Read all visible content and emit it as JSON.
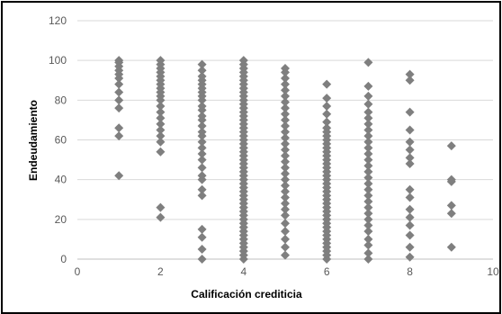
{
  "chart_data": {
    "type": "scatter",
    "title": "",
    "xlabel": "Calificación crediticia",
    "ylabel": "Endeudamiento",
    "xlim": [
      0,
      10
    ],
    "ylim": [
      0,
      120
    ],
    "x_ticks": [
      "0",
      "2",
      "4",
      "6",
      "8",
      "10"
    ],
    "y_ticks": [
      "0",
      "20",
      "40",
      "60",
      "80",
      "100",
      "120"
    ],
    "grid": "horizontal",
    "legend": "none",
    "marker": "diamond",
    "marker_color": "#7f7f7f",
    "series": [
      {
        "points": [
          [
            1,
            42
          ],
          [
            1,
            62
          ],
          [
            1,
            66
          ],
          [
            1,
            76
          ],
          [
            1,
            80
          ],
          [
            1,
            84
          ],
          [
            1,
            88
          ],
          [
            1,
            91
          ],
          [
            1,
            93
          ],
          [
            1,
            95
          ],
          [
            1,
            97
          ],
          [
            1,
            99
          ],
          [
            1,
            100
          ],
          [
            2,
            21
          ],
          [
            2,
            26
          ],
          [
            2,
            54
          ],
          [
            2,
            59
          ],
          [
            2,
            62
          ],
          [
            2,
            65
          ],
          [
            2,
            68
          ],
          [
            2,
            71
          ],
          [
            2,
            74
          ],
          [
            2,
            77
          ],
          [
            2,
            80
          ],
          [
            2,
            82
          ],
          [
            2,
            84
          ],
          [
            2,
            86
          ],
          [
            2,
            88
          ],
          [
            2,
            90
          ],
          [
            2,
            92
          ],
          [
            2,
            94
          ],
          [
            2,
            96
          ],
          [
            2,
            98
          ],
          [
            2,
            100
          ],
          [
            3,
            0
          ],
          [
            3,
            5
          ],
          [
            3,
            11
          ],
          [
            3,
            15
          ],
          [
            3,
            32
          ],
          [
            3,
            35
          ],
          [
            3,
            40
          ],
          [
            3,
            42
          ],
          [
            3,
            46
          ],
          [
            3,
            50
          ],
          [
            3,
            53
          ],
          [
            3,
            56
          ],
          [
            3,
            59
          ],
          [
            3,
            62
          ],
          [
            3,
            64
          ],
          [
            3,
            67
          ],
          [
            3,
            70
          ],
          [
            3,
            72
          ],
          [
            3,
            75
          ],
          [
            3,
            77
          ],
          [
            3,
            80
          ],
          [
            3,
            82
          ],
          [
            3,
            84
          ],
          [
            3,
            86
          ],
          [
            3,
            88
          ],
          [
            3,
            90
          ],
          [
            3,
            92
          ],
          [
            3,
            95
          ],
          [
            3,
            98
          ],
          [
            4,
            0
          ],
          [
            4,
            2
          ],
          [
            4,
            4
          ],
          [
            4,
            6
          ],
          [
            4,
            8
          ],
          [
            4,
            10
          ],
          [
            4,
            12
          ],
          [
            4,
            14
          ],
          [
            4,
            16
          ],
          [
            4,
            18
          ],
          [
            4,
            20
          ],
          [
            4,
            22
          ],
          [
            4,
            24
          ],
          [
            4,
            26
          ],
          [
            4,
            28
          ],
          [
            4,
            30
          ],
          [
            4,
            32
          ],
          [
            4,
            34
          ],
          [
            4,
            36
          ],
          [
            4,
            38
          ],
          [
            4,
            40
          ],
          [
            4,
            42
          ],
          [
            4,
            44
          ],
          [
            4,
            46
          ],
          [
            4,
            48
          ],
          [
            4,
            50
          ],
          [
            4,
            52
          ],
          [
            4,
            54
          ],
          [
            4,
            56
          ],
          [
            4,
            58
          ],
          [
            4,
            60
          ],
          [
            4,
            62
          ],
          [
            4,
            64
          ],
          [
            4,
            66
          ],
          [
            4,
            68
          ],
          [
            4,
            70
          ],
          [
            4,
            72
          ],
          [
            4,
            74
          ],
          [
            4,
            76
          ],
          [
            4,
            78
          ],
          [
            4,
            80
          ],
          [
            4,
            82
          ],
          [
            4,
            84
          ],
          [
            4,
            86
          ],
          [
            4,
            88
          ],
          [
            4,
            90
          ],
          [
            4,
            92
          ],
          [
            4,
            94
          ],
          [
            4,
            96
          ],
          [
            4,
            98
          ],
          [
            4,
            100
          ],
          [
            5,
            2
          ],
          [
            5,
            6
          ],
          [
            5,
            10
          ],
          [
            5,
            14
          ],
          [
            5,
            18
          ],
          [
            5,
            22
          ],
          [
            5,
            25
          ],
          [
            5,
            28
          ],
          [
            5,
            31
          ],
          [
            5,
            34
          ],
          [
            5,
            37
          ],
          [
            5,
            40
          ],
          [
            5,
            43
          ],
          [
            5,
            46
          ],
          [
            5,
            49
          ],
          [
            5,
            52
          ],
          [
            5,
            55
          ],
          [
            5,
            58
          ],
          [
            5,
            61
          ],
          [
            5,
            64
          ],
          [
            5,
            67
          ],
          [
            5,
            70
          ],
          [
            5,
            73
          ],
          [
            5,
            76
          ],
          [
            5,
            79
          ],
          [
            5,
            82
          ],
          [
            5,
            85
          ],
          [
            5,
            88
          ],
          [
            5,
            91
          ],
          [
            5,
            94
          ],
          [
            5,
            96
          ],
          [
            6,
            0
          ],
          [
            6,
            2
          ],
          [
            6,
            4
          ],
          [
            6,
            6
          ],
          [
            6,
            8
          ],
          [
            6,
            10
          ],
          [
            6,
            12
          ],
          [
            6,
            14
          ],
          [
            6,
            16
          ],
          [
            6,
            18
          ],
          [
            6,
            20
          ],
          [
            6,
            22
          ],
          [
            6,
            24
          ],
          [
            6,
            26
          ],
          [
            6,
            28
          ],
          [
            6,
            30
          ],
          [
            6,
            32
          ],
          [
            6,
            34
          ],
          [
            6,
            36
          ],
          [
            6,
            38
          ],
          [
            6,
            40
          ],
          [
            6,
            42
          ],
          [
            6,
            44
          ],
          [
            6,
            46
          ],
          [
            6,
            48
          ],
          [
            6,
            50
          ],
          [
            6,
            52
          ],
          [
            6,
            54
          ],
          [
            6,
            56
          ],
          [
            6,
            58
          ],
          [
            6,
            60
          ],
          [
            6,
            62
          ],
          [
            6,
            64
          ],
          [
            6,
            66
          ],
          [
            6,
            69
          ],
          [
            6,
            73
          ],
          [
            6,
            77
          ],
          [
            6,
            81
          ],
          [
            6,
            88
          ],
          [
            7,
            0
          ],
          [
            7,
            3
          ],
          [
            7,
            7
          ],
          [
            7,
            10
          ],
          [
            7,
            14
          ],
          [
            7,
            17
          ],
          [
            7,
            20
          ],
          [
            7,
            23
          ],
          [
            7,
            26
          ],
          [
            7,
            29
          ],
          [
            7,
            32
          ],
          [
            7,
            35
          ],
          [
            7,
            38
          ],
          [
            7,
            41
          ],
          [
            7,
            44
          ],
          [
            7,
            47
          ],
          [
            7,
            50
          ],
          [
            7,
            53
          ],
          [
            7,
            56
          ],
          [
            7,
            59
          ],
          [
            7,
            62
          ],
          [
            7,
            65
          ],
          [
            7,
            68
          ],
          [
            7,
            71
          ],
          [
            7,
            74
          ],
          [
            7,
            78
          ],
          [
            7,
            82
          ],
          [
            7,
            87
          ],
          [
            7,
            99
          ],
          [
            8,
            1
          ],
          [
            8,
            6
          ],
          [
            8,
            12
          ],
          [
            8,
            17
          ],
          [
            8,
            21
          ],
          [
            8,
            25
          ],
          [
            8,
            31
          ],
          [
            8,
            35
          ],
          [
            8,
            48
          ],
          [
            8,
            51
          ],
          [
            8,
            55
          ],
          [
            8,
            59
          ],
          [
            8,
            65
          ],
          [
            8,
            74
          ],
          [
            8,
            90
          ],
          [
            8,
            93
          ],
          [
            9,
            6
          ],
          [
            9,
            23
          ],
          [
            9,
            27
          ],
          [
            9,
            39
          ],
          [
            9,
            40
          ],
          [
            9,
            57
          ]
        ]
      }
    ]
  }
}
